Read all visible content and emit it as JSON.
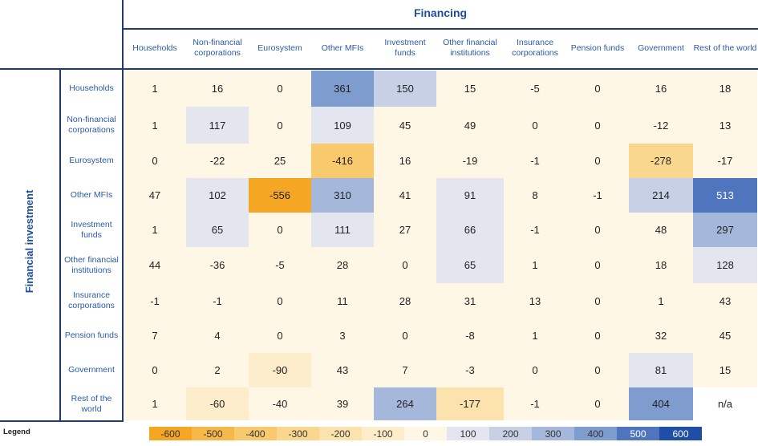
{
  "chart_data": {
    "type": "heatmap",
    "title": "Financing",
    "row_axis_title": "Financial investment",
    "columns": [
      "Households",
      "Non-financial corporations",
      "Eurosystem",
      "Other MFIs",
      "Investment funds",
      "Other financial institutions",
      "Insurance corporations",
      "Pension funds",
      "Government",
      "Rest of the world"
    ],
    "rows": [
      "Households",
      "Non-financial corporations",
      "Eurosystem",
      "Other MFIs",
      "Investment funds",
      "Other financial institutions",
      "Insurance corporations",
      "Pension funds",
      "Government",
      "Rest of the world"
    ],
    "values": [
      [
        "1",
        "16",
        "0",
        "361",
        "150",
        "15",
        "-5",
        "0",
        "16",
        "18"
      ],
      [
        "1",
        "117",
        "0",
        "109",
        "45",
        "49",
        "0",
        "0",
        "-12",
        "13"
      ],
      [
        "0",
        "-22",
        "25",
        "-416",
        "16",
        "-19",
        "-1",
        "0",
        "-278",
        "-17"
      ],
      [
        "47",
        "102",
        "-556",
        "310",
        "41",
        "91",
        "8",
        "-1",
        "214",
        "513"
      ],
      [
        "1",
        "65",
        "0",
        "111",
        "27",
        "66",
        "-1",
        "0",
        "48",
        "297"
      ],
      [
        "44",
        "-36",
        "-5",
        "28",
        "0",
        "65",
        "1",
        "0",
        "18",
        "128"
      ],
      [
        "-1",
        "-1",
        "0",
        "11",
        "28",
        "31",
        "13",
        "0",
        "1",
        "43"
      ],
      [
        "7",
        "4",
        "0",
        "3",
        "0",
        "-8",
        "1",
        "0",
        "32",
        "45"
      ],
      [
        "0",
        "2",
        "-90",
        "43",
        "7",
        "-3",
        "0",
        "0",
        "81",
        "15"
      ],
      [
        "1",
        "-60",
        "-40",
        "39",
        "264",
        "-177",
        "-1",
        "0",
        "404",
        "n/a"
      ]
    ],
    "legend": {
      "label": "Legend",
      "ticks": [
        "-600",
        "-500",
        "-400",
        "-300",
        "-200",
        "-100",
        "0",
        "100",
        "200",
        "300",
        "400",
        "500",
        "600"
      ],
      "colors": [
        "#f5a623",
        "#f7b84a",
        "#f9c96e",
        "#fad78f",
        "#fce3ae",
        "#fdedcb",
        "#fef7e6",
        "#e3e6ee",
        "#c7d0e5",
        "#a5b8dc",
        "#7f9ccf",
        "#4f75bf",
        "#1f4ea6"
      ]
    }
  },
  "colors": {
    "frame": "#1f3b73",
    "header_text": "#2a5aa8",
    "title_text": "#1f4e9a"
  }
}
